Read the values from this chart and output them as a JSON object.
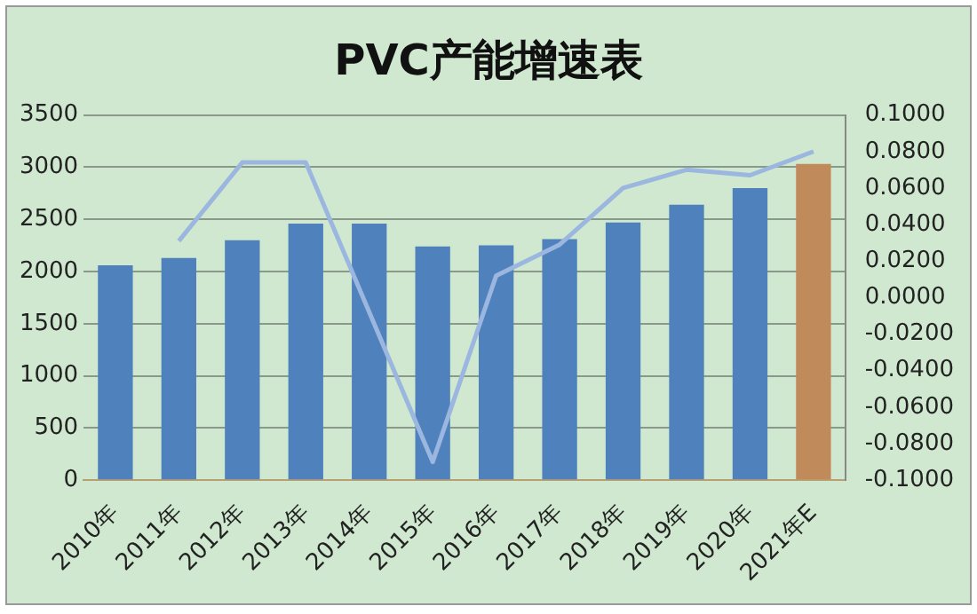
{
  "chart_data": {
    "type": "bar",
    "title": "PVC产能增速表",
    "categories": [
      "2010年",
      "2011年",
      "2012年",
      "2013年",
      "2014年",
      "2015年",
      "2016年",
      "2017年",
      "2018年",
      "2019年",
      "2020年",
      "2021年E"
    ],
    "series": [
      {
        "colors": [
          "#4f81bd",
          "#4f81bd",
          "#4f81bd",
          "#4f81bd",
          "#4f81bd",
          "#4f81bd",
          "#4f81bd",
          "#4f81bd",
          "#4f81bd",
          "#4f81bd",
          "#4f81bd",
          "#c08a5a"
        ],
        "values": [
          2060,
          2130,
          2300,
          2460,
          2460,
          2240,
          2250,
          2310,
          2470,
          2640,
          2800,
          3030
        ]
      },
      {
        "type": "line",
        "axis": "y2",
        "color": "#9bb7e0",
        "values": [
          null,
          0.031,
          0.074,
          0.074,
          -0.008,
          -0.09,
          0.012,
          0.029,
          0.06,
          0.07,
          0.067,
          0.08
        ]
      }
    ],
    "ylim": [
      0,
      3500
    ],
    "yticks": [
      0,
      500,
      1000,
      1500,
      2000,
      2500,
      3000,
      3500
    ],
    "y2lim": [
      -0.1,
      0.1
    ],
    "y2ticks": [
      {
        "value": -0.1,
        "label": "-0.1000"
      },
      {
        "value": -0.08,
        "label": "-0.0800"
      },
      {
        "value": -0.06,
        "label": "-0.0600"
      },
      {
        "value": -0.04,
        "label": "-0.0400"
      },
      {
        "value": -0.02,
        "label": "-0.0200"
      },
      {
        "value": 0,
        "label": "0.0000"
      },
      {
        "value": 0.02,
        "label": "0.0200"
      },
      {
        "value": 0.04,
        "label": "0.0400"
      },
      {
        "value": 0.06,
        "label": "0.0600"
      },
      {
        "value": 0.08,
        "label": "0.0800"
      },
      {
        "value": 0.1,
        "label": "0.1000"
      }
    ],
    "grid": "y",
    "marker": "none"
  }
}
